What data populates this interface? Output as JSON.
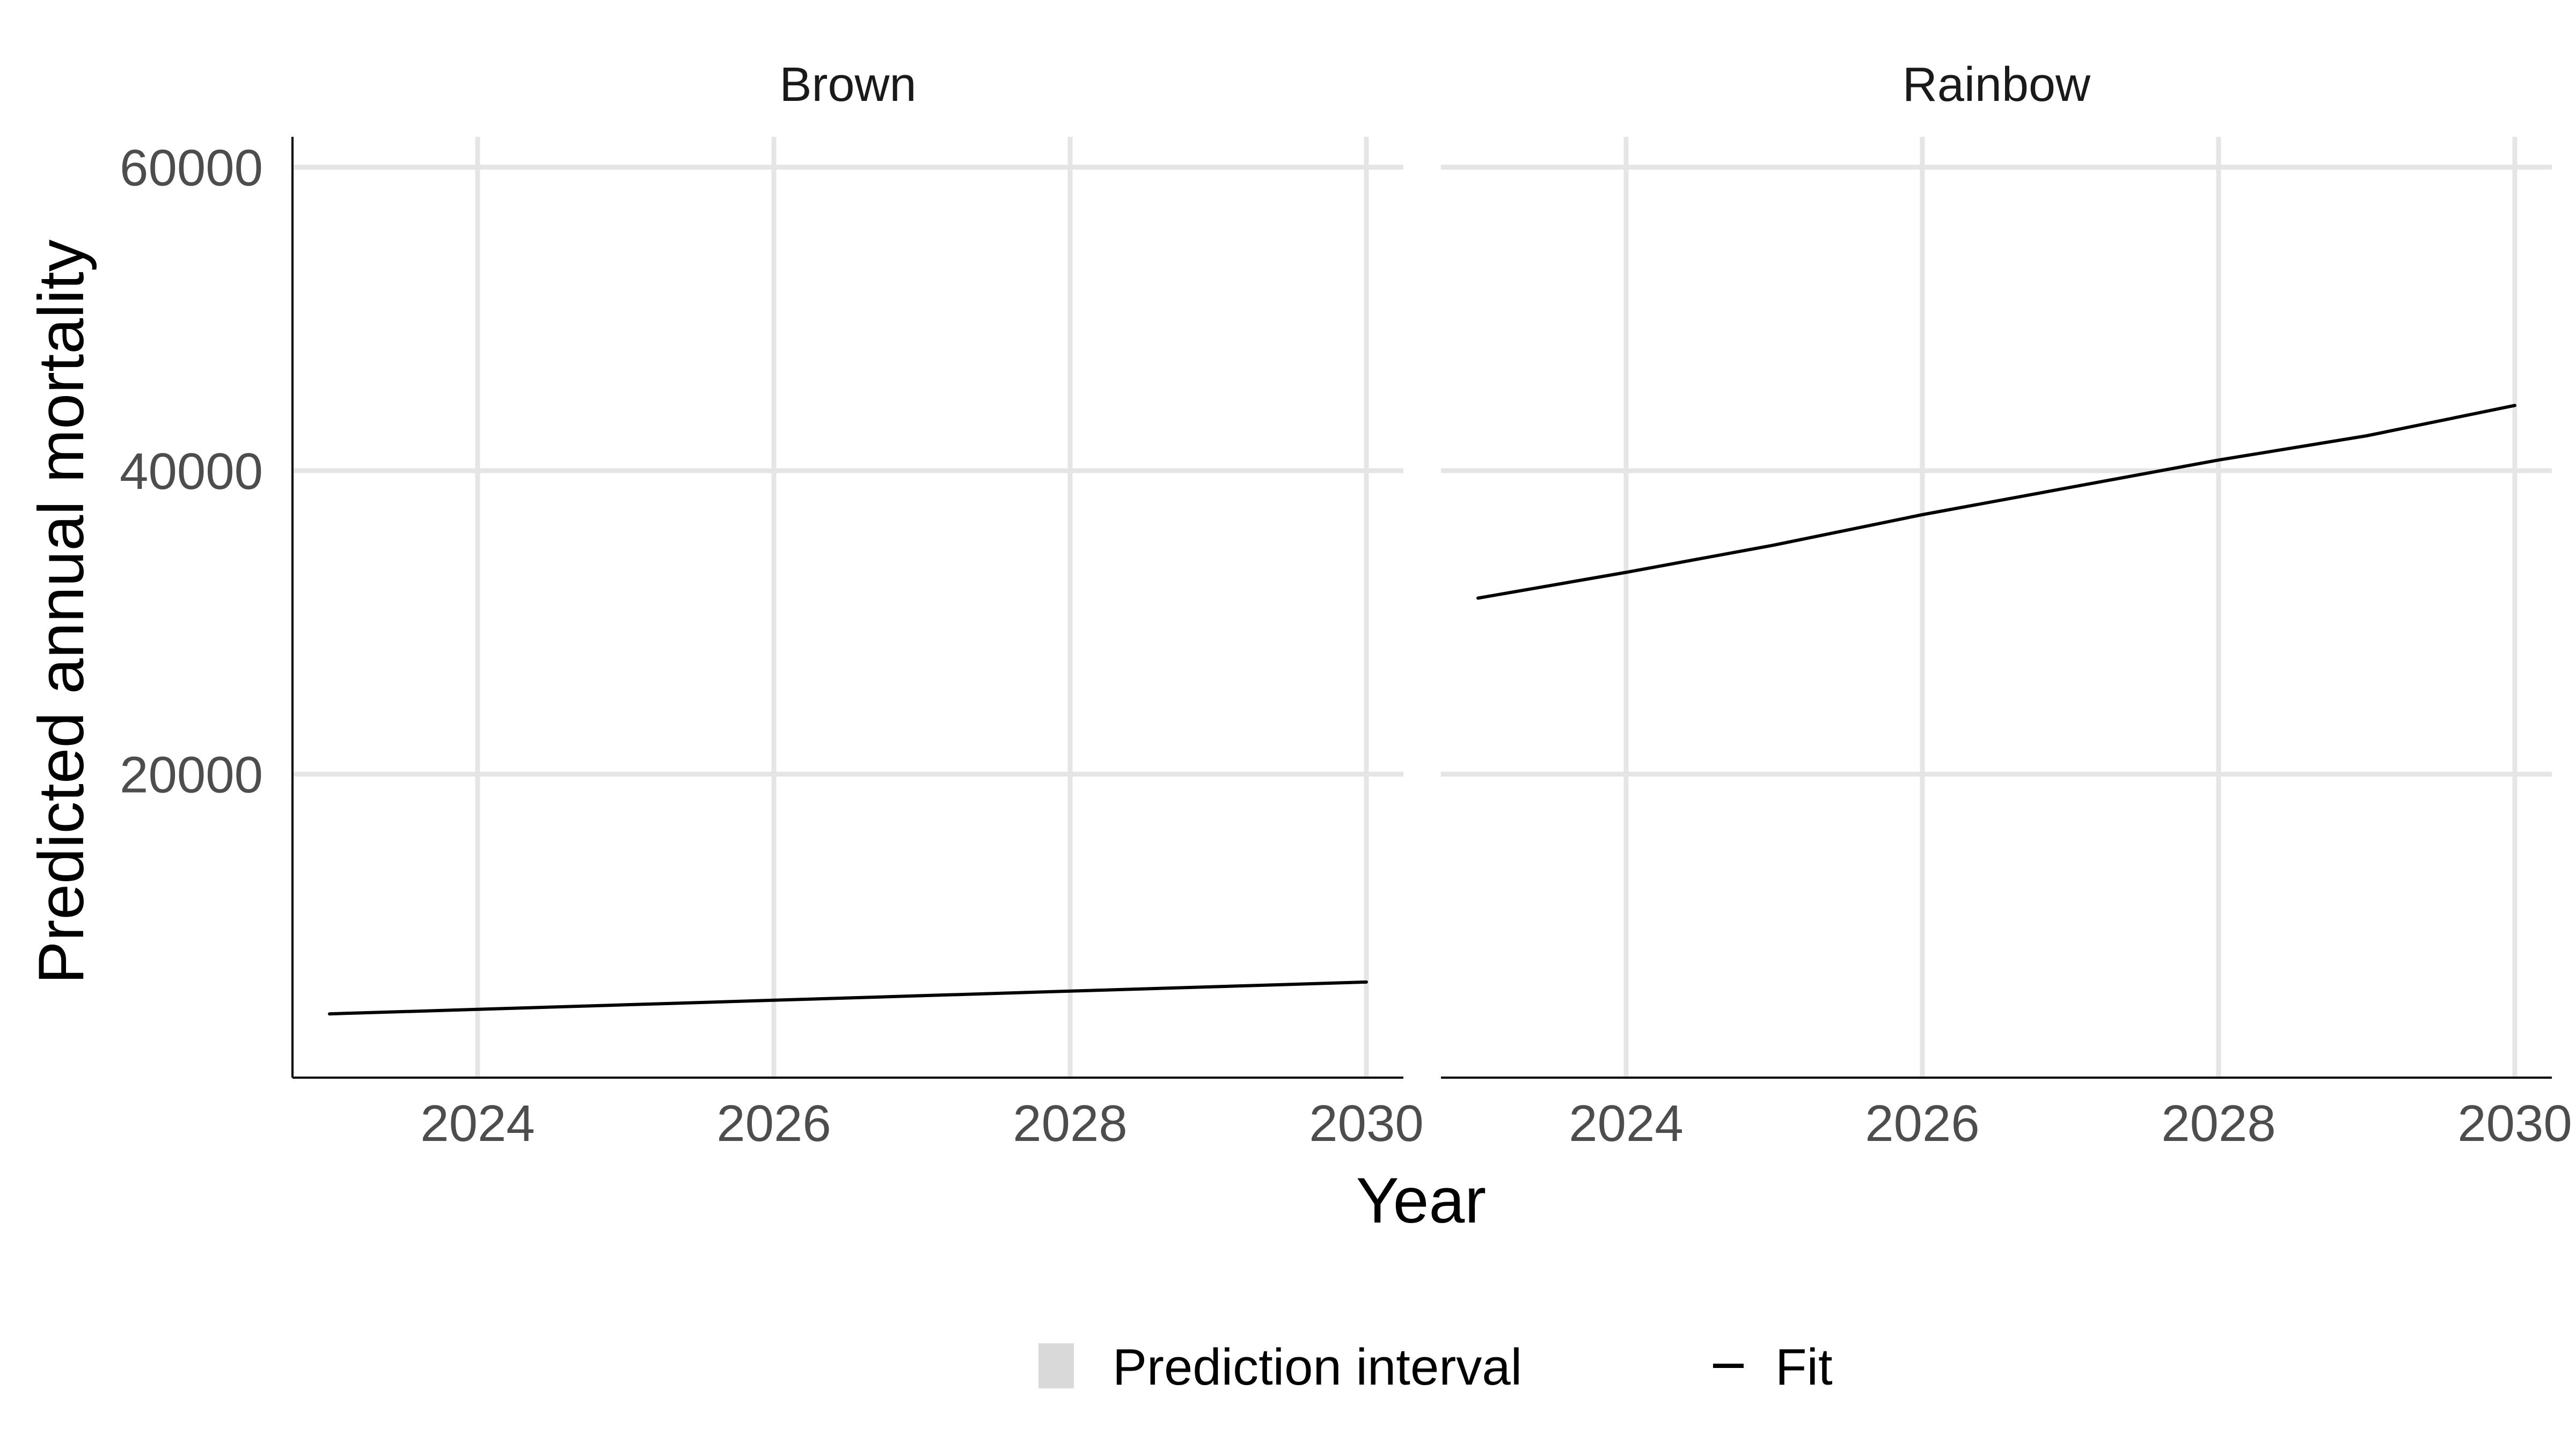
{
  "chart_data": {
    "type": "line",
    "xlabel": "Year",
    "ylabel": "Predicted annual mortality",
    "xlim": [
      2022.75,
      2030.25
    ],
    "ylim": [
      0,
      62000
    ],
    "x_ticks": [
      2024,
      2026,
      2028,
      2030
    ],
    "x_tick_labels": [
      "2024",
      "2026",
      "2028",
      "2030"
    ],
    "y_ticks": [
      20000,
      40000,
      60000
    ],
    "y_tick_labels": [
      "20000",
      "40000",
      "60000"
    ],
    "grid": true,
    "legend_position": "bottom",
    "legend": [
      {
        "label": "Prediction interval",
        "key": "prediction_interval",
        "color": "#d9d9d9"
      },
      {
        "label": "Fit",
        "key": "fit",
        "color": "#000000"
      }
    ],
    "line_color": "#000000",
    "interval_color": "#d9d9d9",
    "panels": [
      {
        "title": "Brown",
        "x": [
          2023,
          2024,
          2025,
          2026,
          2027,
          2028,
          2029,
          2030
        ],
        "fit": [
          4200,
          4500,
          4800,
          5100,
          5400,
          5700,
          6000,
          6300
        ]
      },
      {
        "title": "Rainbow",
        "x": [
          2023,
          2024,
          2025,
          2026,
          2027,
          2028,
          2029,
          2030
        ],
        "fit": [
          31600,
          33300,
          35100,
          37100,
          38900,
          40700,
          42300,
          44300
        ]
      }
    ]
  }
}
